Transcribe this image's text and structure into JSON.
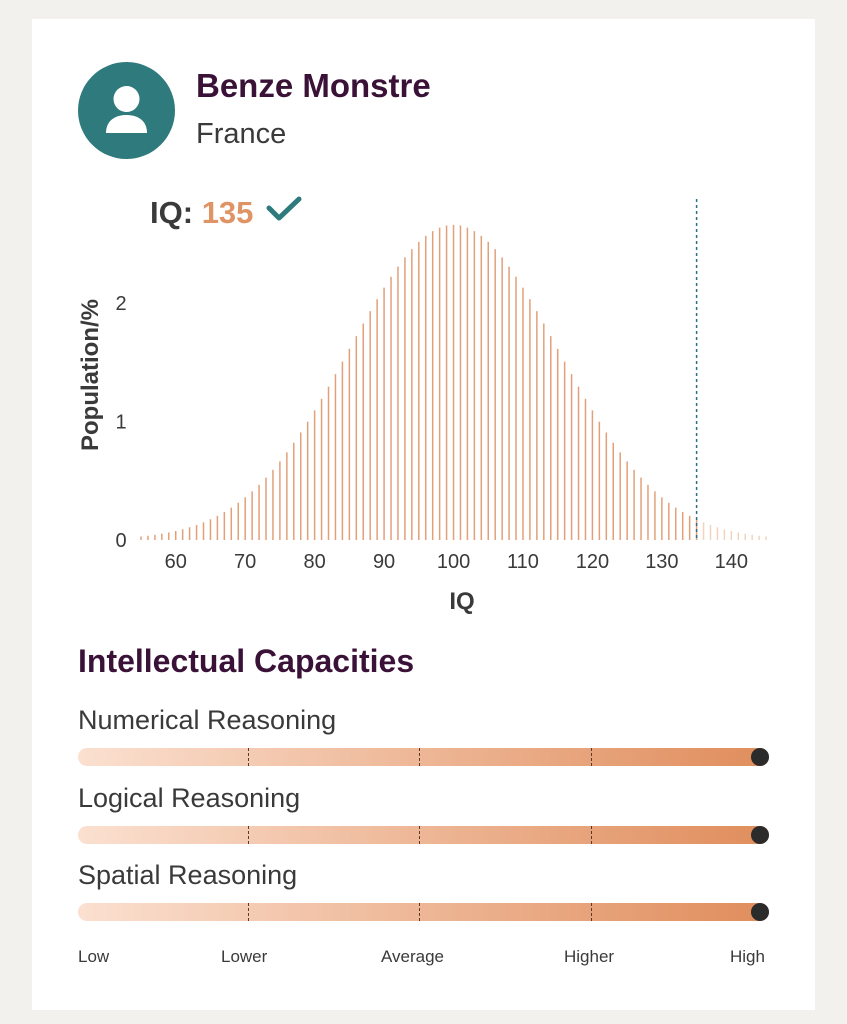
{
  "profile": {
    "name": "Benze Monstre",
    "country": "France",
    "avatar_icon": "user-icon"
  },
  "iq": {
    "label": "IQ:",
    "value": "135",
    "verified_icon": "check-icon"
  },
  "colors": {
    "accent": "#df9465",
    "teal": "#2f7a7c",
    "title": "#3a1238"
  },
  "chart_data": {
    "type": "bar",
    "distribution": "normal",
    "mean": 100,
    "sd": 15,
    "x_start": 55,
    "x_end": 145,
    "bar_step": 1,
    "marker": 135,
    "xlabel": "IQ",
    "ylabel": "Population/%",
    "xlim": [
      55,
      145
    ],
    "ylim": [
      0,
      2.8
    ],
    "x_ticks": [
      "60",
      "70",
      "80",
      "90",
      "100",
      "110",
      "120",
      "130",
      "140"
    ],
    "y_ticks": [
      "0",
      "1",
      "2"
    ],
    "grid": false
  },
  "capacities": {
    "title": "Intellectual Capacities",
    "items": [
      {
        "label": "Numerical Reasoning",
        "level": 0.99
      },
      {
        "label": "Logical Reasoning",
        "level": 1.0
      },
      {
        "label": "Spatial Reasoning",
        "level": 1.0
      }
    ],
    "scale": [
      "Low",
      "Lower",
      "Average",
      "Higher",
      "High"
    ]
  }
}
